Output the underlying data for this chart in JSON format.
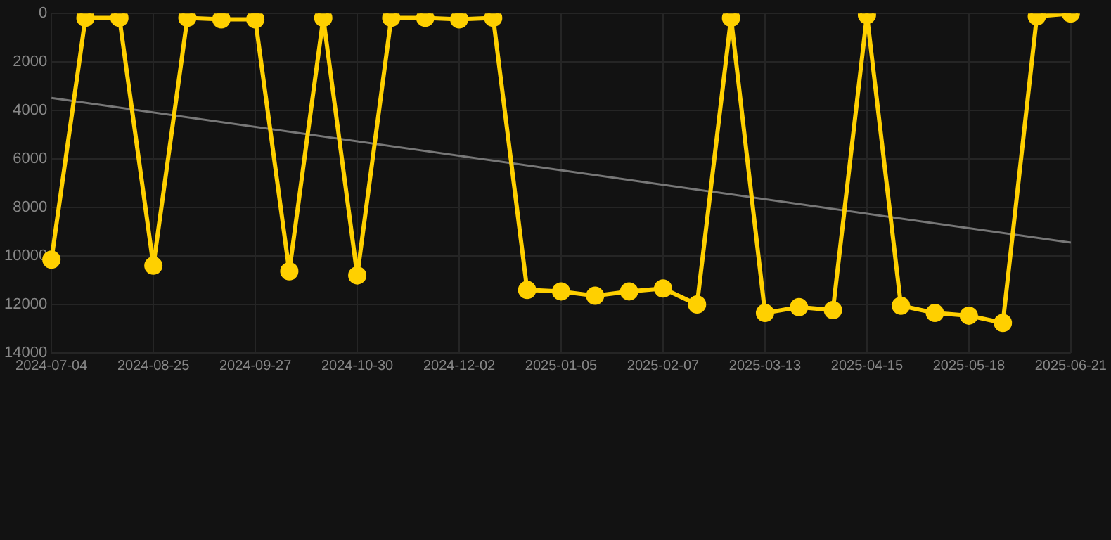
{
  "chart_data": {
    "type": "line",
    "categories": [
      "2024-07-04",
      null,
      null,
      "2024-08-25",
      null,
      null,
      "2024-09-27",
      null,
      null,
      "2024-10-30",
      null,
      null,
      "2024-12-02",
      null,
      null,
      "2025-01-05",
      null,
      null,
      "2025-02-07",
      null,
      null,
      "2025-03-13",
      null,
      null,
      "2025-04-15",
      null,
      null,
      "2025-05-18",
      null,
      null,
      "2025-06-21"
    ],
    "series": [
      {
        "color": "#ffd000",
        "marker": "circle",
        "values": [
          10150,
          180,
          180,
          10400,
          180,
          240,
          240,
          10630,
          180,
          10800,
          180,
          180,
          240,
          180,
          11400,
          11460,
          11640,
          11460,
          11340,
          12000,
          180,
          12350,
          12110,
          12230,
          60,
          12050,
          12350,
          12460,
          12760,
          120,
          0
        ]
      },
      {
        "type": "line",
        "color": "#777777",
        "marker": "none",
        "values": [
          3480,
          null,
          null,
          null,
          null,
          null,
          null,
          null,
          null,
          null,
          null,
          null,
          null,
          null,
          null,
          null,
          null,
          null,
          null,
          null,
          null,
          null,
          null,
          null,
          null,
          null,
          null,
          null,
          null,
          null,
          9450
        ]
      }
    ],
    "ylim": [
      14000,
      0
    ],
    "yticks": [
      0,
      2000,
      4000,
      6000,
      8000,
      10000,
      12000,
      14000
    ],
    "grid": true,
    "legend": false
  }
}
